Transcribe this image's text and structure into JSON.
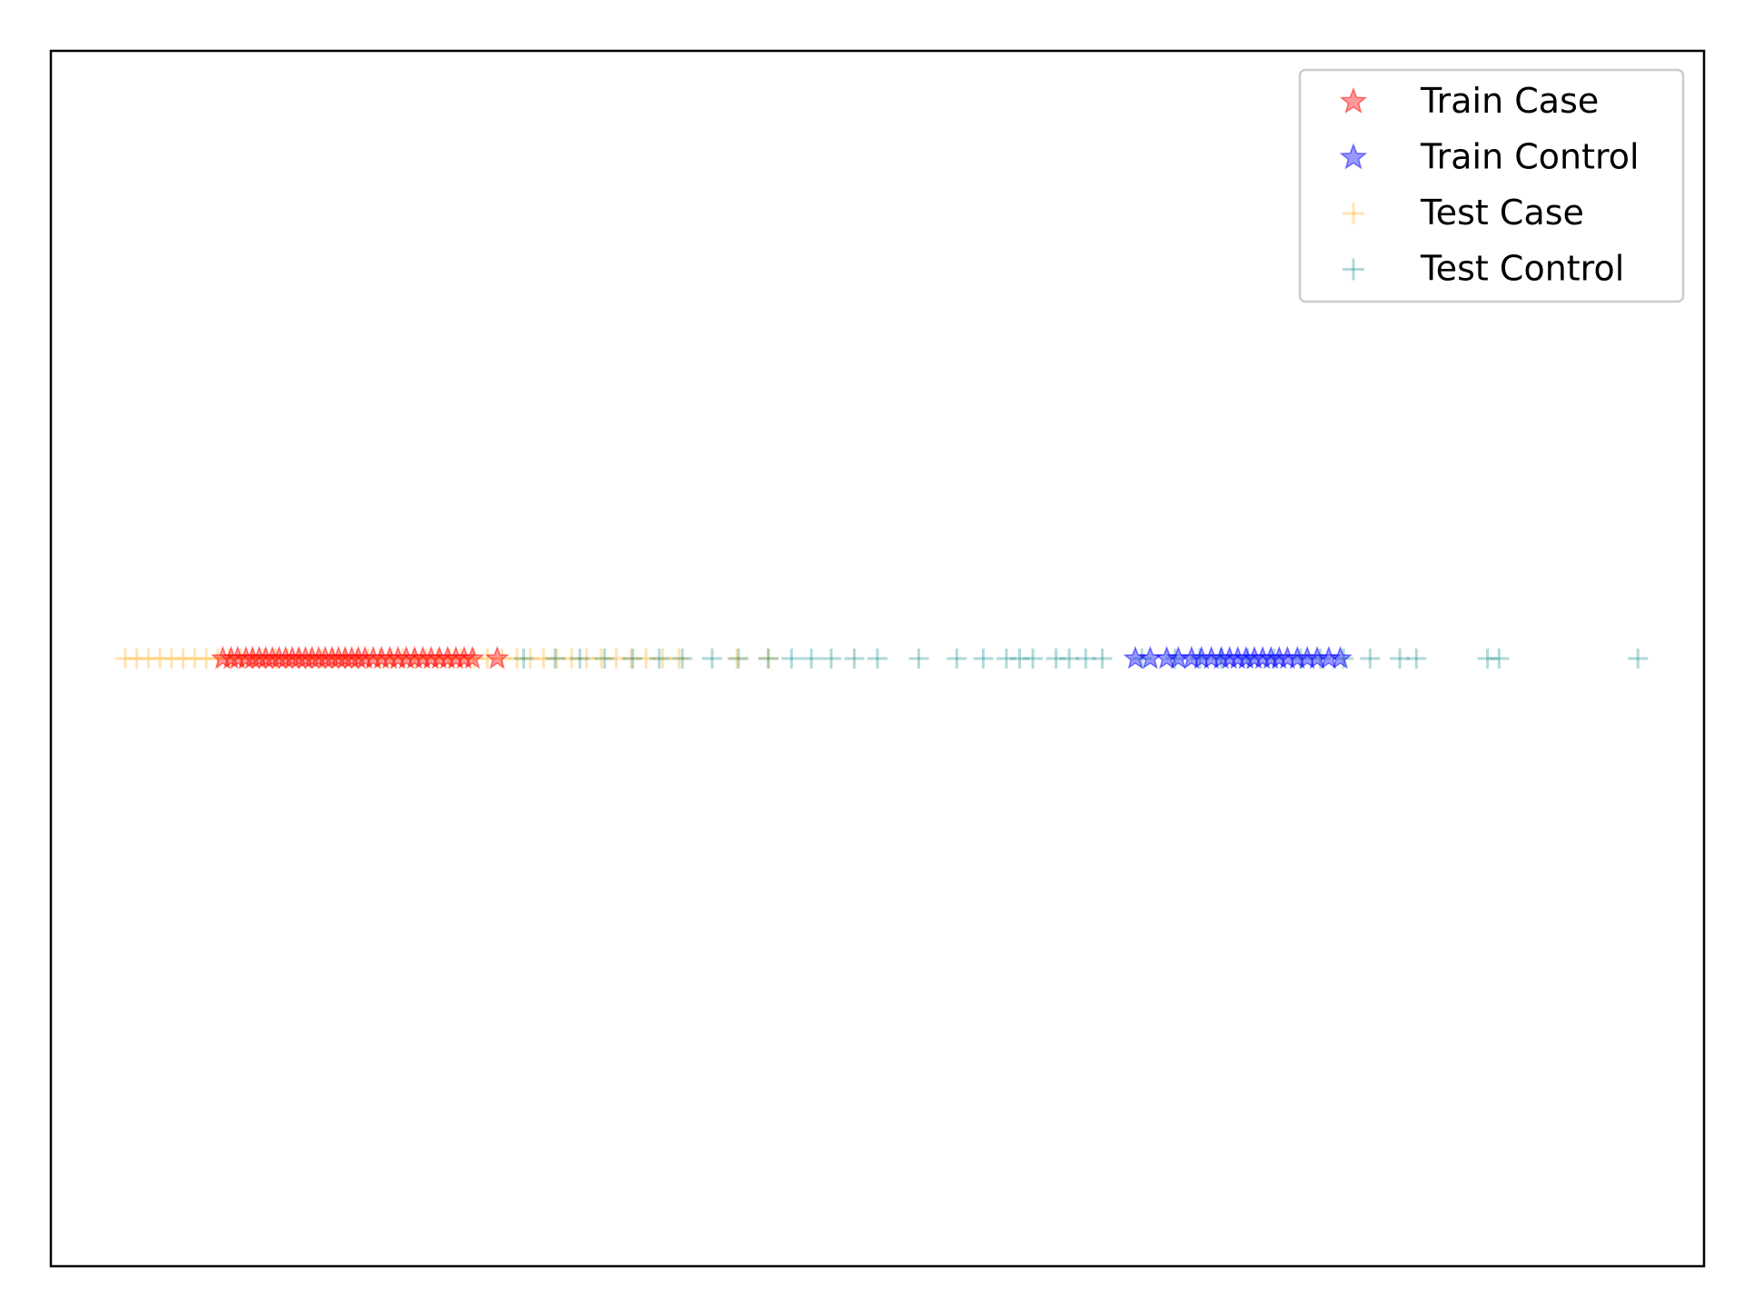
{
  "chart_data": {
    "type": "scatter",
    "title": "",
    "xlabel": "",
    "ylabel": "",
    "xlim": [
      0,
      100
    ],
    "ylim": [
      -1,
      1
    ],
    "show_ticks": false,
    "grid": false,
    "legend_position": "top-right",
    "series": [
      {
        "name": "Train Case",
        "marker": "star",
        "color": "#ff0000",
        "x": [
          10.4,
          10.9,
          11.3,
          11.8,
          12.2,
          12.6,
          13.0,
          13.4,
          13.8,
          14.2,
          14.6,
          15.0,
          15.4,
          15.8,
          16.2,
          16.6,
          17.0,
          17.4,
          17.8,
          18.2,
          18.6,
          19.0,
          19.5,
          20.0,
          20.5,
          21.0,
          21.5,
          22.0,
          22.5,
          23.0,
          23.5,
          24.0,
          24.5,
          25.0,
          25.5,
          27.0
        ],
        "y": [
          0,
          0,
          0,
          0,
          0,
          0,
          0,
          0,
          0,
          0,
          0,
          0,
          0,
          0,
          0,
          0,
          0,
          0,
          0,
          0,
          0,
          0,
          0,
          0,
          0,
          0,
          0,
          0,
          0,
          0,
          0,
          0,
          0,
          0,
          0,
          0
        ]
      },
      {
        "name": "Train Control",
        "marker": "star",
        "color": "#0000ff",
        "x": [
          65.6,
          66.5,
          67.5,
          68.2,
          69.0,
          69.6,
          70.2,
          70.8,
          71.3,
          71.8,
          72.3,
          72.8,
          73.3,
          73.8,
          74.3,
          74.8,
          75.4,
          76.0,
          76.6,
          77.3,
          78.0
        ],
        "y": [
          0,
          0,
          0,
          0,
          0,
          0,
          0,
          0,
          0,
          0,
          0,
          0,
          0,
          0,
          0,
          0,
          0,
          0,
          0,
          0,
          0
        ]
      },
      {
        "name": "Test Case",
        "marker": "plus",
        "color": "#ffa500",
        "x": [
          4.5,
          5.2,
          5.9,
          6.6,
          7.3,
          8.0,
          8.7,
          9.4,
          10.1,
          10.8,
          11.5,
          12.2,
          12.9,
          13.6,
          14.3,
          15.0,
          15.7,
          16.4,
          17.1,
          17.8,
          18.5,
          19.2,
          19.9,
          20.6,
          21.3,
          22.0,
          22.7,
          23.4,
          24.1,
          24.8,
          25.6,
          26.4,
          27.3,
          28.2,
          29.0,
          29.8,
          30.6,
          31.5,
          32.4,
          33.3,
          34.2,
          35.1,
          36.0,
          37.0,
          38.0,
          41.5,
          43.4
        ],
        "y": [
          0,
          0,
          0,
          0,
          0,
          0,
          0,
          0,
          0,
          0,
          0,
          0,
          0,
          0,
          0,
          0,
          0,
          0,
          0,
          0,
          0,
          0,
          0,
          0,
          0,
          0,
          0,
          0,
          0,
          0,
          0,
          0,
          0,
          0,
          0,
          0,
          0,
          0,
          0,
          0,
          0,
          0,
          0,
          0,
          0,
          0,
          0
        ]
      },
      {
        "name": "Test Control",
        "marker": "plus",
        "color": "#008080",
        "x": [
          28.6,
          30.5,
          32.0,
          33.5,
          35.2,
          36.8,
          38.2,
          40.0,
          41.6,
          43.4,
          44.8,
          46.0,
          47.2,
          48.6,
          50.0,
          52.5,
          54.8,
          56.4,
          57.8,
          58.6,
          59.4,
          60.8,
          61.6,
          62.6,
          63.6,
          66.0,
          68.0,
          69.5,
          70.8,
          72.4,
          74.0,
          75.6,
          76.8,
          78.2,
          79.8,
          81.6,
          82.6,
          86.9,
          87.6,
          96.0
        ],
        "y": [
          0,
          0,
          0,
          0,
          0,
          0,
          0,
          0,
          0,
          0,
          0,
          0,
          0,
          0,
          0,
          0,
          0,
          0,
          0,
          0,
          0,
          0,
          0,
          0,
          0,
          0,
          0,
          0,
          0,
          0,
          0,
          0,
          0,
          0,
          0,
          0,
          0,
          0,
          0,
          0
        ]
      }
    ]
  }
}
